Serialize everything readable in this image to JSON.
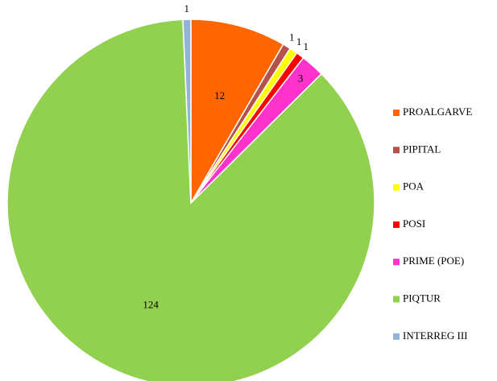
{
  "chart_data": {
    "type": "pie",
    "categories": [
      "PROALGARVE",
      "PIPITAL",
      "POA",
      "POSI",
      "PRIME (POE)",
      "PIQTUR",
      "INTERREG III"
    ],
    "values": [
      12,
      1,
      1,
      1,
      3,
      124,
      1
    ],
    "colors": [
      "#ff6600",
      "#b5524c",
      "#ffff00",
      "#ff0000",
      "#ff33cc",
      "#92d050",
      "#95b3d7"
    ],
    "legend": "right"
  }
}
